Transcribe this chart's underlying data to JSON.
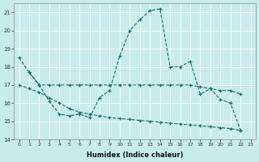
{
  "xlabel": "Humidex (Indice chaleur)",
  "bg_color": "#c8ecec",
  "line_color": "#1a6b6b",
  "grid_color": "#ffffff",
  "xlim_min": -0.5,
  "xlim_max": 23.5,
  "ylim_min": 14,
  "ylim_max": 21.5,
  "yticks": [
    14,
    15,
    16,
    17,
    18,
    19,
    20,
    21
  ],
  "xticks": [
    0,
    1,
    2,
    3,
    4,
    5,
    6,
    7,
    8,
    9,
    10,
    11,
    12,
    13,
    14,
    15,
    16,
    17,
    18,
    19,
    20,
    21,
    22,
    23
  ],
  "line1_x": [
    0,
    1,
    2,
    3,
    4,
    5,
    6,
    7,
    8,
    9,
    10,
    11,
    12,
    13,
    14,
    15,
    16,
    17,
    18,
    19,
    20,
    21,
    22
  ],
  "line1_y": [
    18.5,
    17.7,
    17.0,
    16.1,
    15.4,
    15.3,
    15.4,
    15.2,
    16.3,
    16.7,
    18.6,
    20.0,
    20.6,
    21.1,
    21.2,
    18.0,
    18.0,
    18.3,
    16.5,
    16.8,
    16.2,
    16.0,
    14.5
  ],
  "line2_x": [
    1,
    2,
    3,
    4,
    5,
    6,
    7,
    8,
    9,
    10,
    11,
    12,
    13,
    14,
    15,
    16,
    17,
    18,
    19,
    20,
    21,
    22
  ],
  "line2_y": [
    17.7,
    17.0,
    17.0,
    17.0,
    17.0,
    17.0,
    17.0,
    17.0,
    17.0,
    17.0,
    17.0,
    17.0,
    17.0,
    17.0,
    17.0,
    17.0,
    17.0,
    16.9,
    16.8,
    16.7,
    16.7,
    16.5
  ],
  "line3_x": [
    0,
    1,
    2,
    3,
    4,
    5,
    6,
    7,
    8,
    9,
    10,
    11,
    12,
    13,
    14,
    15,
    16,
    17,
    18,
    19,
    20,
    21,
    22
  ],
  "line3_y": [
    17.0,
    16.8,
    16.6,
    16.3,
    16.0,
    15.7,
    15.5,
    15.4,
    15.3,
    15.2,
    15.15,
    15.1,
    15.05,
    15.0,
    14.95,
    14.9,
    14.85,
    14.8,
    14.75,
    14.7,
    14.65,
    14.6,
    14.5
  ]
}
